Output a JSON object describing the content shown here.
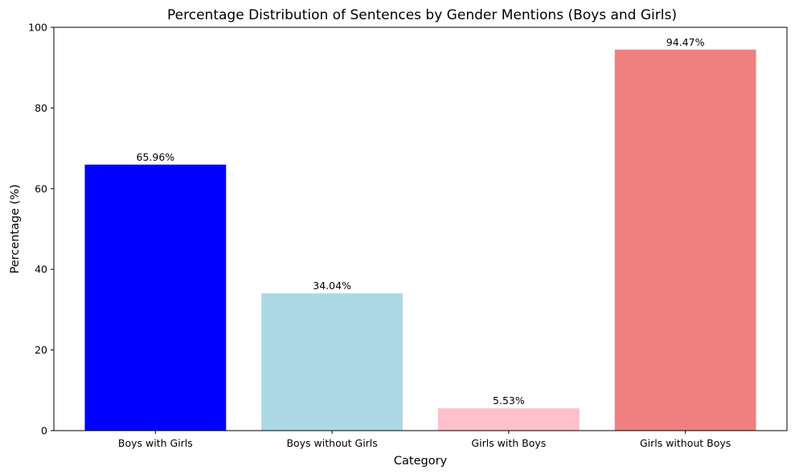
{
  "chart_data": {
    "type": "bar",
    "title": "Percentage Distribution of Sentences by Gender Mentions (Boys and Girls)",
    "xlabel": "Category",
    "ylabel": "Percentage (%)",
    "categories": [
      "Boys with Girls",
      "Boys without Girls",
      "Girls with Boys",
      "Girls without Boys"
    ],
    "values": [
      65.96,
      34.04,
      5.53,
      94.47
    ],
    "data_labels": [
      "65.96%",
      "34.04%",
      "5.53%",
      "94.47%"
    ],
    "colors": [
      "#0000ff",
      "#add8e6",
      "#ffc0cb",
      "#f08080"
    ],
    "ylim": [
      0,
      100
    ],
    "yticks": [
      0,
      20,
      40,
      60,
      80,
      100
    ],
    "grid": false,
    "legend": false
  }
}
